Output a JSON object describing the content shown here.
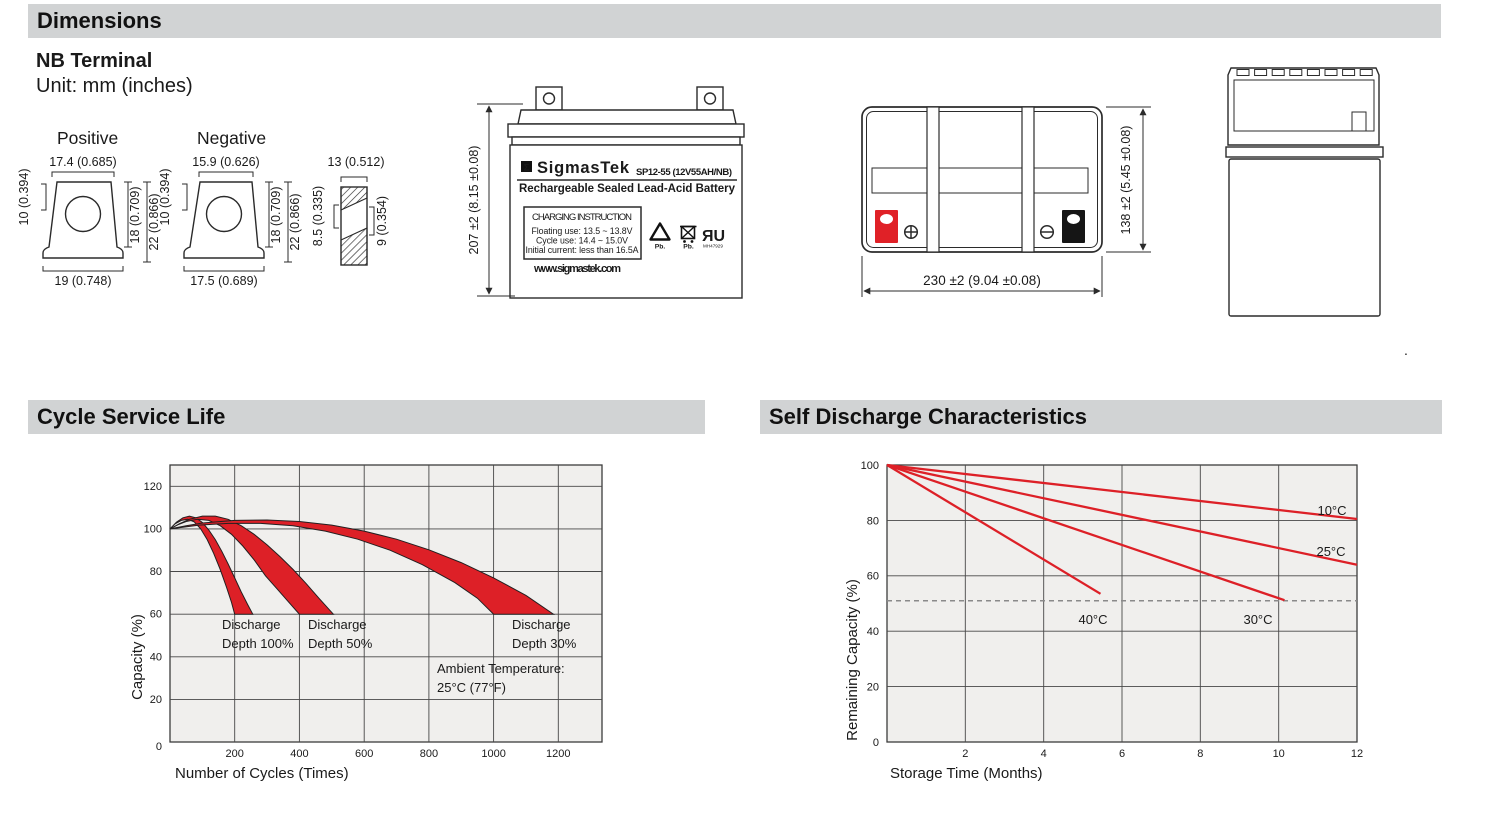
{
  "sections": {
    "dimensions": "Dimensions",
    "cycle_service_life": "Cycle Service Life",
    "self_discharge": "Self Discharge Characteristics"
  },
  "terminal_info": {
    "title": "NB Terminal",
    "unit": "Unit: mm (inches)"
  },
  "terminals": {
    "positive": {
      "label": "Positive",
      "top_width": "17.4 (0.685)",
      "bottom_width": "19 (0.748)",
      "left_height": "10 (0.394)",
      "inner_height": "18 (0.709)",
      "outer_height": "22 (0.866)"
    },
    "negative": {
      "label": "Negative",
      "top_width": "15.9 (0.626)",
      "bottom_width": "17.5 (0.689)",
      "left_height": "10 (0.394)",
      "inner_height": "18 (0.709)",
      "outer_height": "22 (0.866)"
    },
    "profile": {
      "width": "13 (0.512)",
      "left_height": "8.5 (0.335)",
      "right_height": "9 (0.354)"
    }
  },
  "front_view": {
    "height_dim": "207 ±2 (8.15 ±0.08)",
    "sigma": "Σ",
    "brand": "SigmasTek",
    "model": "SP12-55 (12V55AH/NB)",
    "type_line": "Rechargeable Sealed Lead-Acid Battery",
    "charging_title": "CHARGING INSTRUCTION",
    "charging_line1": "Floating use: 13.5 ~ 13.8V",
    "charging_line2": "Cycle use: 14.4 ~ 15.0V",
    "charging_line3": "Initial current: less than 16.5A",
    "website": "www.sigmastek.com",
    "pb_recycle": "Pb.",
    "pb_bin": "Pb.",
    "ul_mark": "ЯU",
    "ul_code": "MH47929"
  },
  "top_view": {
    "width_dim": "230 ±2 (9.04 ±0.08)",
    "height_dim": "138 ±2 (5.45 ±0.08)"
  },
  "icons": {
    "sigma_logo": "black-square-with-white-sigma",
    "plus_terminal": "⊕",
    "minus_terminal": "⊖",
    "recycle_pb": "recycle-triangle",
    "crossed_bin_pb": "crossed-out-bin",
    "ul_recognized": "backwards-R-U-mark"
  },
  "artifact_dot": ".",
  "chart_data": [
    {
      "type": "area",
      "title": "Cycle Service Life",
      "xlabel": "Number of Cycles (Times)",
      "ylabel": "Capacity (%)",
      "xlim": [
        0,
        1335
      ],
      "ylim": [
        0,
        130
      ],
      "xticks": [
        200,
        400,
        600,
        800,
        1000,
        1200
      ],
      "yticks": [
        0,
        20,
        40,
        60,
        80,
        100,
        120
      ],
      "grid": true,
      "legend_position": "none",
      "plot_bg": "#f0efed",
      "band_color": "#dd2027",
      "annotations": [
        {
          "lines": [
            "Discharge",
            "Depth 100%"
          ]
        },
        {
          "lines": [
            "Discharge",
            "Depth 50%"
          ]
        },
        {
          "lines": [
            "Discharge",
            "Depth 30%"
          ]
        },
        {
          "lines": [
            "Ambient Temperature:",
            "25°C (77°F)"
          ]
        }
      ],
      "series": [
        {
          "name": "Discharge Depth 100%",
          "band_upper": [
            [
              0,
              100
            ],
            [
              20,
              103.2
            ],
            [
              40,
              105.2
            ],
            [
              60,
              106
            ],
            [
              80,
              105.2
            ],
            [
              100,
              103
            ],
            [
              120,
              99.5
            ],
            [
              140,
              95
            ],
            [
              160,
              89.5
            ],
            [
              180,
              83.5
            ],
            [
              200,
              77
            ],
            [
              220,
              70.5
            ],
            [
              240,
              64.5
            ],
            [
              256,
              60
            ]
          ],
          "band_lower": [
            [
              0,
              100
            ],
            [
              15,
              102.3
            ],
            [
              35,
              104
            ],
            [
              55,
              104.5
            ],
            [
              75,
              103.3
            ],
            [
              95,
              100
            ],
            [
              115,
              95
            ],
            [
              135,
              88.5
            ],
            [
              155,
              81
            ],
            [
              175,
              72.5
            ],
            [
              190,
              65.5
            ],
            [
              200,
              60
            ]
          ]
        },
        {
          "name": "Discharge Depth 50%",
          "band_upper": [
            [
              0,
              100
            ],
            [
              30,
              102.5
            ],
            [
              60,
              104.5
            ],
            [
              100,
              106
            ],
            [
              140,
              106
            ],
            [
              180,
              104.5
            ],
            [
              220,
              101.5
            ],
            [
              260,
              97.5
            ],
            [
              300,
              92.5
            ],
            [
              340,
              87
            ],
            [
              380,
              81
            ],
            [
              420,
              74.5
            ],
            [
              460,
              67.5
            ],
            [
              505,
              60
            ]
          ],
          "band_lower": [
            [
              0,
              100
            ],
            [
              25,
              102
            ],
            [
              50,
              103.5
            ],
            [
              85,
              104.5
            ],
            [
              120,
              104
            ],
            [
              155,
              101.5
            ],
            [
              190,
              97.5
            ],
            [
              225,
              92
            ],
            [
              260,
              85.5
            ],
            [
              295,
              78
            ],
            [
              330,
              72
            ],
            [
              365,
              66
            ],
            [
              400,
              60
            ]
          ]
        },
        {
          "name": "Discharge Depth 30%",
          "band_upper": [
            [
              0,
              100
            ],
            [
              50,
              101.5
            ],
            [
              100,
              102.8
            ],
            [
              200,
              104
            ],
            [
              300,
              104.2
            ],
            [
              400,
              103.5
            ],
            [
              500,
              101.8
            ],
            [
              600,
              99
            ],
            [
              700,
              95.2
            ],
            [
              800,
              90.2
            ],
            [
              900,
              84.2
            ],
            [
              1000,
              77
            ],
            [
              1100,
              68.8
            ],
            [
              1185,
              60
            ]
          ],
          "band_lower": [
            [
              0,
              100
            ],
            [
              40,
              100.8
            ],
            [
              90,
              101.8
            ],
            [
              180,
              102.6
            ],
            [
              280,
              102.6
            ],
            [
              380,
              101.5
            ],
            [
              480,
              99
            ],
            [
              580,
              95.2
            ],
            [
              680,
              90
            ],
            [
              780,
              83.2
            ],
            [
              880,
              74.8
            ],
            [
              950,
              67.5
            ],
            [
              1000,
              60
            ]
          ]
        }
      ]
    },
    {
      "type": "line",
      "title": "Self Discharge Characteristics",
      "xlabel": "Storage Time (Months)",
      "ylabel": "Remaining Capacity (%)",
      "xlim": [
        0,
        12
      ],
      "ylim": [
        0,
        100
      ],
      "xticks": [
        2,
        4,
        6,
        8,
        10,
        12
      ],
      "yticks": [
        0,
        20,
        40,
        60,
        80,
        100
      ],
      "grid": true,
      "legend_position": "inline-labels",
      "plot_bg": "#f0efed",
      "line_color": "#dd2027",
      "dashed_guide_y": 51,
      "series": [
        {
          "name": "10°C",
          "points": [
            [
              0,
              100
            ],
            [
              12,
              80.5
            ]
          ]
        },
        {
          "name": "25°C",
          "points": [
            [
              0,
              100
            ],
            [
              12,
              64
            ]
          ]
        },
        {
          "name": "30°C",
          "points": [
            [
              0,
              100
            ],
            [
              10.15,
              51.2
            ]
          ]
        },
        {
          "name": "40°C",
          "points": [
            [
              0,
              100
            ],
            [
              5.45,
              53.5
            ]
          ]
        }
      ]
    }
  ]
}
